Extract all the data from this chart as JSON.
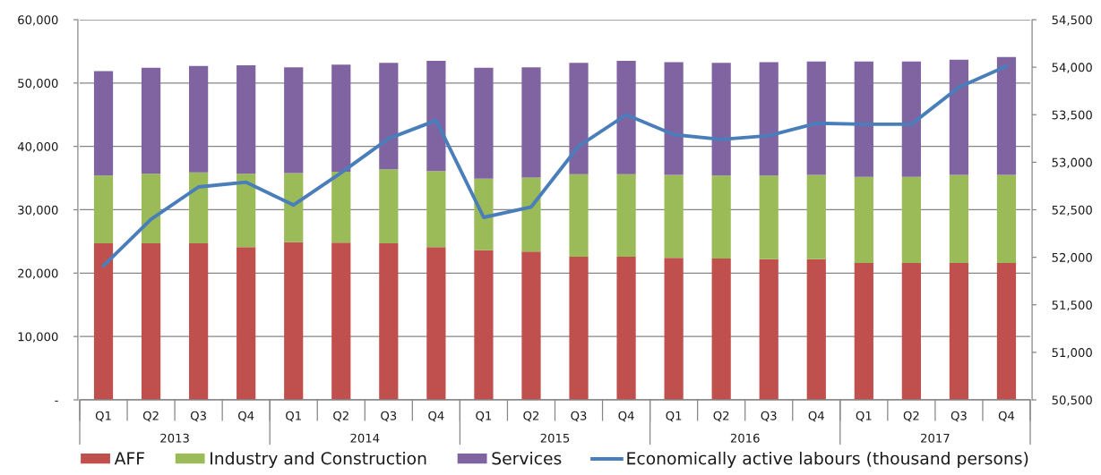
{
  "chart_data": {
    "type": "bar",
    "stacked": true,
    "categories": [
      "Q1",
      "Q2",
      "Q3",
      "Q4",
      "Q1",
      "Q2",
      "Q3",
      "Q4",
      "Q1",
      "Q2",
      "Q3",
      "Q4",
      "Q1",
      "Q2",
      "Q3",
      "Q4",
      "Q1",
      "Q2",
      "Q3",
      "Q4"
    ],
    "series": [
      {
        "name": "AFF",
        "color": "#c0504d",
        "values": [
          24700,
          24700,
          24700,
          24100,
          24900,
          24800,
          24700,
          24100,
          23600,
          23400,
          22600,
          22600,
          22400,
          22300,
          22200,
          22200,
          21600,
          21600,
          21600,
          21600
        ]
      },
      {
        "name": "Industry and Construction",
        "color": "#9bbb59",
        "values": [
          10700,
          11000,
          11200,
          11600,
          10900,
          11200,
          11700,
          12000,
          11300,
          11700,
          13000,
          13000,
          13100,
          13100,
          13200,
          13300,
          13600,
          13600,
          13900,
          13900
        ]
      },
      {
        "name": "Services",
        "color": "#8064a2",
        "values": [
          16500,
          16700,
          16800,
          17100,
          16700,
          16900,
          16800,
          17400,
          17500,
          17400,
          17600,
          17900,
          17800,
          17800,
          17900,
          17900,
          18200,
          18200,
          18200,
          18600
        ]
      },
      {
        "name": "Economically active labours (thousand persons)",
        "type": "line",
        "axis": "y2",
        "color": "#4a7ebb",
        "values": [
          51910,
          52400,
          52740,
          52790,
          52550,
          52890,
          53250,
          53440,
          52420,
          52530,
          53170,
          53500,
          53290,
          53240,
          53280,
          53410,
          53400,
          53400,
          53790,
          54010
        ]
      }
    ],
    "annotations": [
      "2013",
      "2014",
      "2015",
      "2016",
      "2017"
    ],
    "ylim": [
      0,
      60000
    ],
    "yticks": [
      {
        "value": 0,
        "label": "-"
      },
      {
        "value": 10000,
        "label": "10,000"
      },
      {
        "value": 20000,
        "label": "20,000"
      },
      {
        "value": 30000,
        "label": "30,000"
      },
      {
        "value": 40000,
        "label": "40,000"
      },
      {
        "value": 50000,
        "label": "50,000"
      },
      {
        "value": 60000,
        "label": "60,000"
      }
    ],
    "y2lim": [
      50500,
      54500
    ],
    "y2ticks": [
      {
        "value": 50500,
        "label": "50,500"
      },
      {
        "value": 51000,
        "label": "51,000"
      },
      {
        "value": 51500,
        "label": "51,500"
      },
      {
        "value": 52000,
        "label": "52,000"
      },
      {
        "value": 52500,
        "label": "52,500"
      },
      {
        "value": 53000,
        "label": "53,000"
      },
      {
        "value": 53500,
        "label": "53,500"
      },
      {
        "value": 54000,
        "label": "54,000"
      },
      {
        "value": 54500,
        "label": "54,500"
      }
    ],
    "grid": "y",
    "legend": "bottom"
  }
}
